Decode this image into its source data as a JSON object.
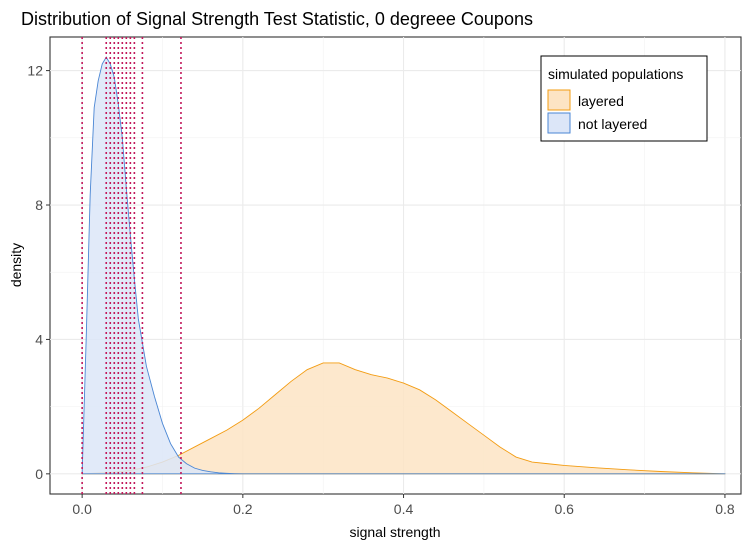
{
  "chart_data": {
    "type": "area",
    "title": "Distribution of Signal Strength Test Statistic, 0 degreee Coupons",
    "xlabel": "signal strength",
    "ylabel": "density",
    "xlim": [
      -0.04,
      0.82
    ],
    "ylim": [
      -0.6,
      13.0
    ],
    "x_ticks": [
      0.0,
      0.2,
      0.4,
      0.6,
      0.8
    ],
    "x_tick_labels": [
      "0.0",
      "0.2",
      "0.4",
      "0.6",
      "0.8"
    ],
    "y_ticks": [
      0,
      4,
      8,
      12
    ],
    "y_tick_labels": [
      "0",
      "4",
      "8",
      "12"
    ],
    "grid": true,
    "legend": {
      "title": "simulated populations",
      "placement": "top-right",
      "entries": [
        "layered",
        "not layered"
      ]
    },
    "series": [
      {
        "name": "layered",
        "fill": "#fde4c4",
        "stroke": "#f39c12",
        "x": [
          0.0,
          0.04,
          0.06,
          0.08,
          0.1,
          0.12,
          0.14,
          0.16,
          0.18,
          0.2,
          0.22,
          0.24,
          0.26,
          0.28,
          0.3,
          0.32,
          0.34,
          0.36,
          0.38,
          0.4,
          0.42,
          0.44,
          0.46,
          0.48,
          0.5,
          0.52,
          0.54,
          0.56,
          0.58,
          0.6,
          0.64,
          0.68,
          0.72,
          0.76,
          0.8
        ],
        "y": [
          0.0,
          0.05,
          0.1,
          0.2,
          0.35,
          0.55,
          0.8,
          1.05,
          1.3,
          1.6,
          1.95,
          2.35,
          2.75,
          3.1,
          3.3,
          3.3,
          3.1,
          2.95,
          2.85,
          2.7,
          2.5,
          2.2,
          1.85,
          1.5,
          1.15,
          0.8,
          0.5,
          0.35,
          0.3,
          0.25,
          0.18,
          0.12,
          0.07,
          0.03,
          0.0
        ]
      },
      {
        "name": "not layered",
        "fill": "#dce6f8",
        "stroke": "#4a86d4",
        "x": [
          0.0,
          0.005,
          0.01,
          0.015,
          0.02,
          0.025,
          0.03,
          0.035,
          0.04,
          0.045,
          0.05,
          0.055,
          0.06,
          0.065,
          0.07,
          0.08,
          0.09,
          0.1,
          0.11,
          0.12,
          0.13,
          0.14,
          0.15,
          0.16,
          0.17,
          0.18,
          0.19,
          0.2,
          0.3,
          0.4,
          0.5,
          0.6,
          0.7,
          0.8
        ],
        "y": [
          0.0,
          4.0,
          8.3,
          10.9,
          11.7,
          12.2,
          12.4,
          12.2,
          11.8,
          11.0,
          10.0,
          8.5,
          7.1,
          5.8,
          4.6,
          3.2,
          2.3,
          1.5,
          0.9,
          0.5,
          0.3,
          0.17,
          0.1,
          0.06,
          0.03,
          0.015,
          0.005,
          0.0,
          0.0,
          0.0,
          0.0,
          0.0,
          0.0,
          0.0
        ]
      }
    ],
    "vlines": {
      "color": "#c2185b",
      "style": "dotted",
      "x": [
        0.0,
        0.03,
        0.035,
        0.04,
        0.045,
        0.05,
        0.055,
        0.06,
        0.065,
        0.075,
        0.123
      ]
    }
  }
}
